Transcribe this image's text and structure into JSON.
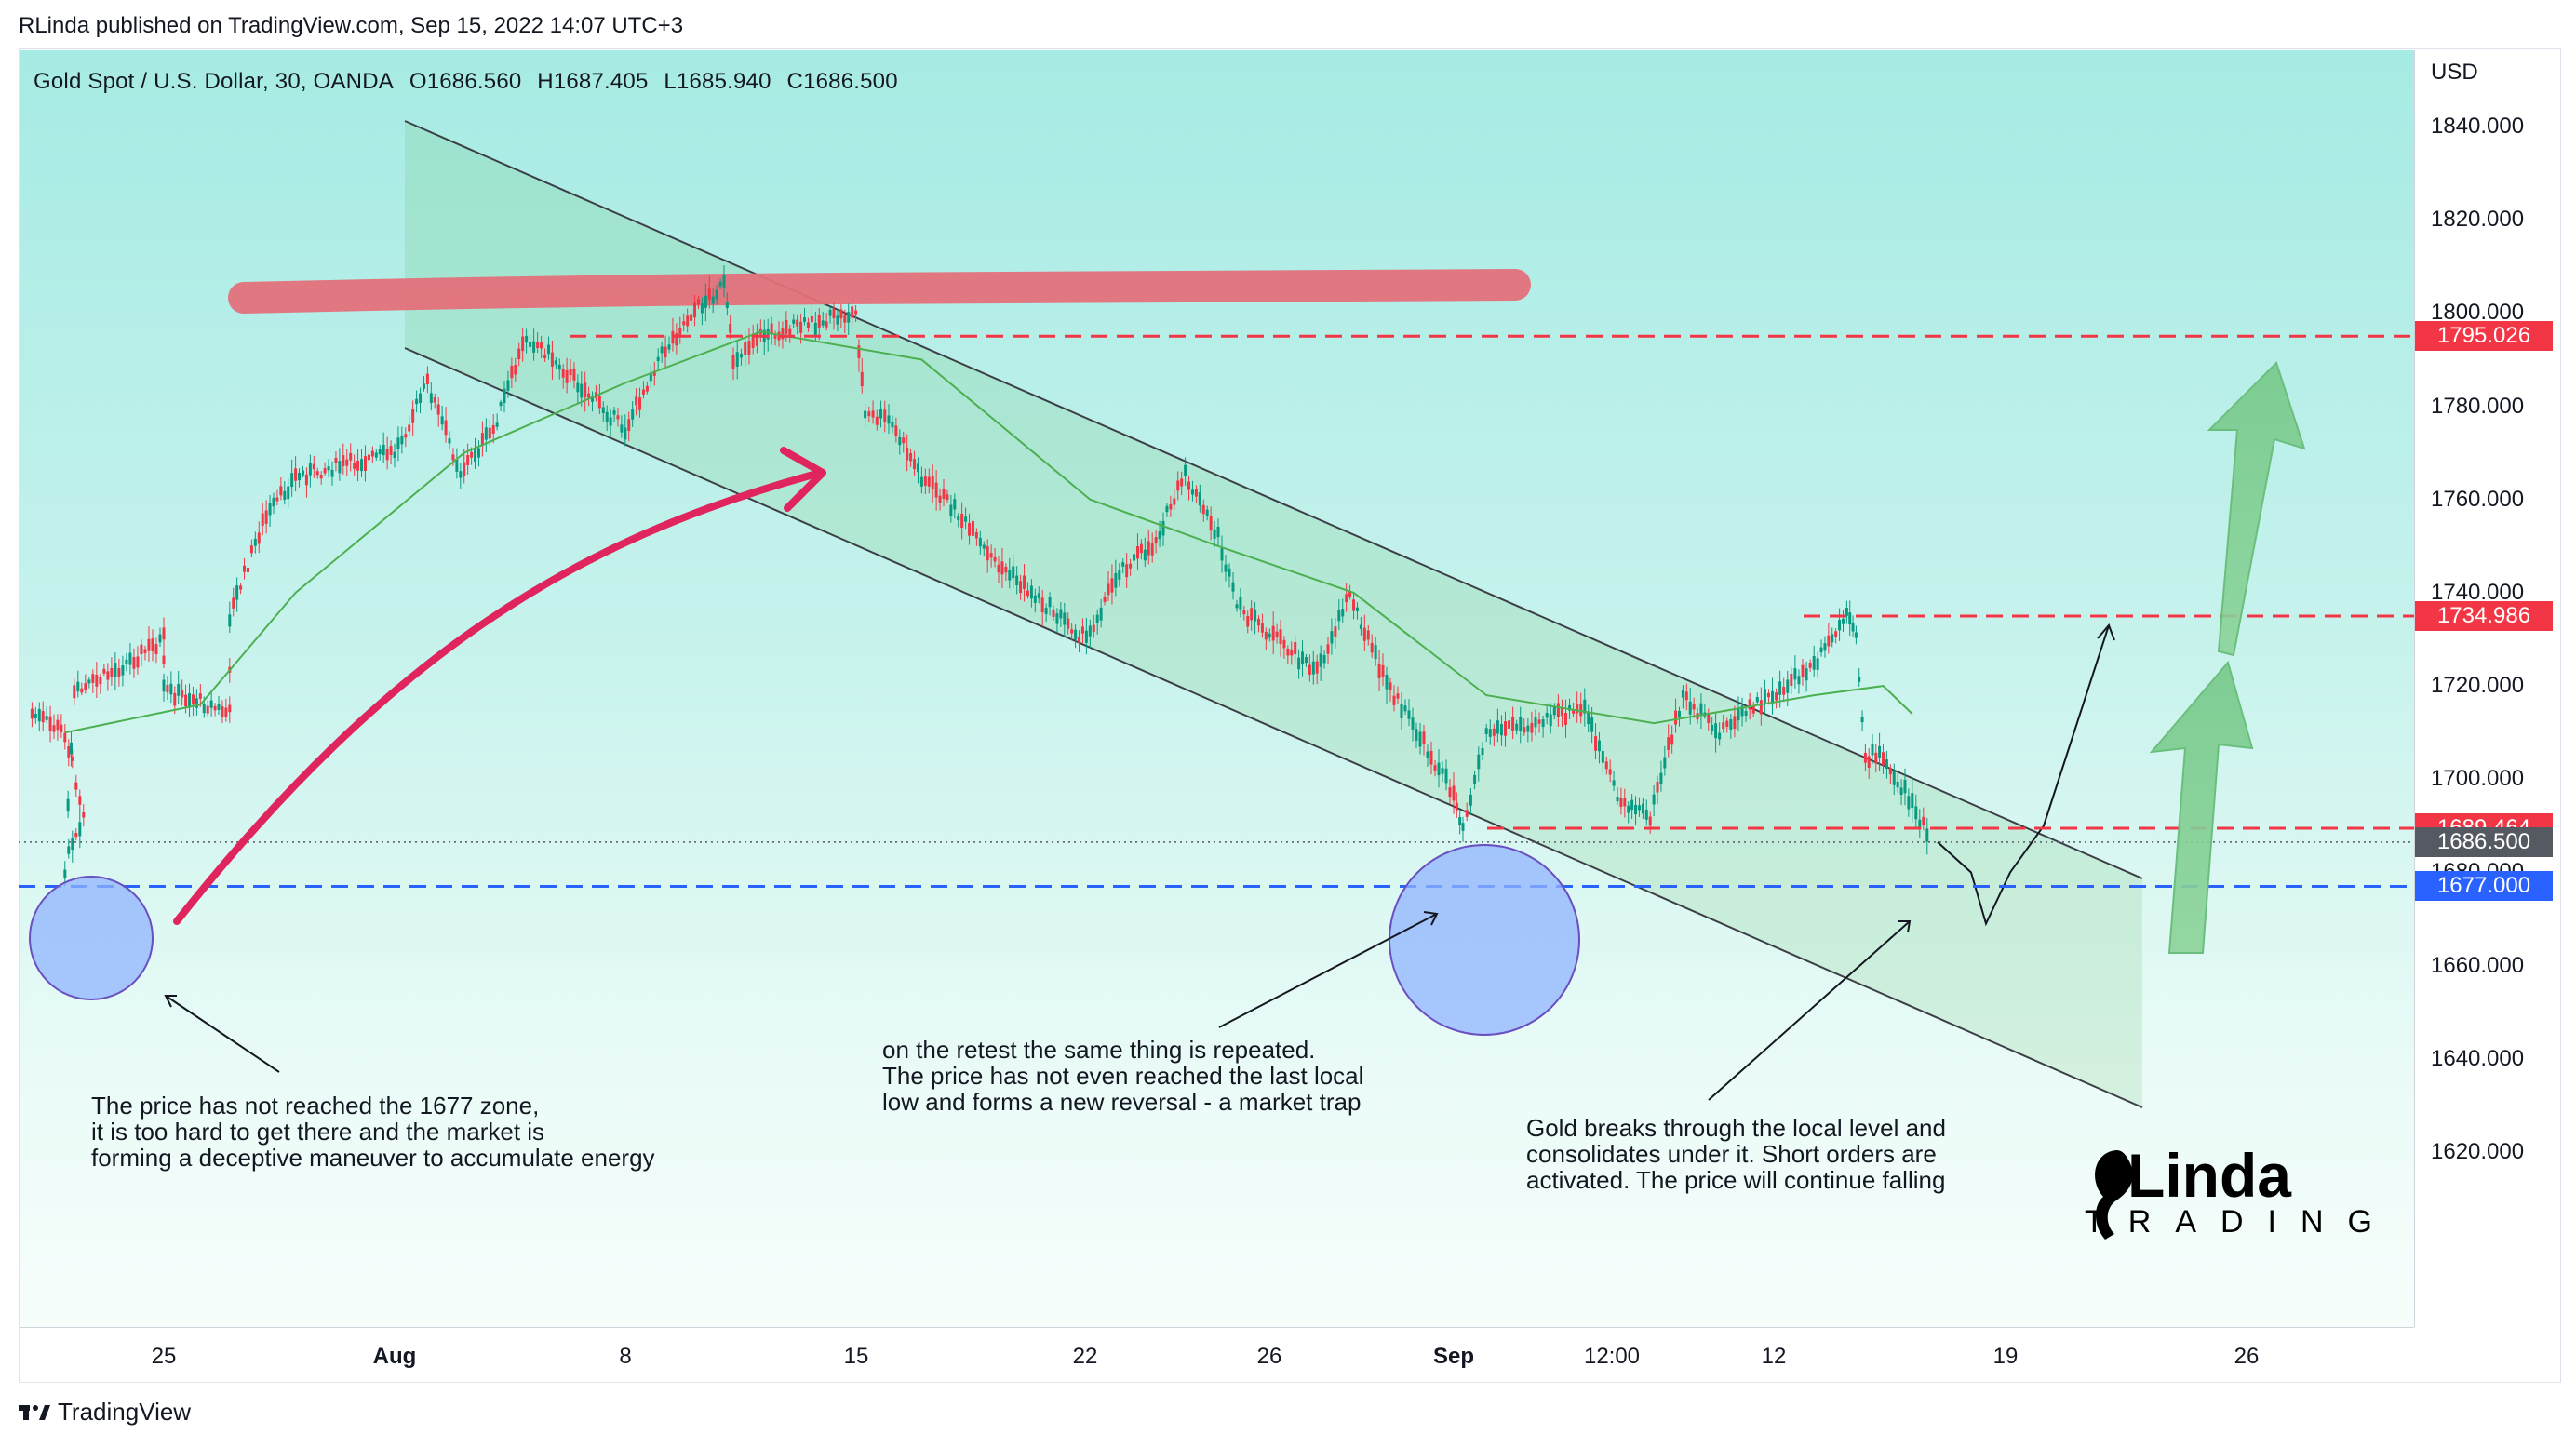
{
  "header": {
    "credit": "RLinda published on TradingView.com, Sep 15, 2022 14:07 UTC+3"
  },
  "legend": {
    "symbol": "Gold Spot / U.S. Dollar, 30, OANDA",
    "open": "O1686.560",
    "high": "H1687.405",
    "low": "L1685.940",
    "close": "C1686.500"
  },
  "price_axis": {
    "currency": "USD",
    "ticks": [
      "1840.000",
      "1820.000",
      "1800.000",
      "1780.000",
      "1760.000",
      "1740.000",
      "1720.000",
      "1700.000",
      "1680.000",
      "1660.000",
      "1640.000",
      "1620.000"
    ]
  },
  "time_axis": {
    "ticks": [
      {
        "label": "25",
        "bold": false
      },
      {
        "label": "Aug",
        "bold": true
      },
      {
        "label": "8",
        "bold": false
      },
      {
        "label": "15",
        "bold": false
      },
      {
        "label": "22",
        "bold": false
      },
      {
        "label": "26",
        "bold": false
      },
      {
        "label": "Sep",
        "bold": true
      },
      {
        "label": "12:00",
        "bold": false
      },
      {
        "label": "12",
        "bold": false
      },
      {
        "label": "19",
        "bold": false
      },
      {
        "label": "26",
        "bold": false
      }
    ]
  },
  "levels": [
    {
      "label": "1795.026",
      "color": "#f23645",
      "style": "dashed"
    },
    {
      "label": "1734.986",
      "color": "#f23645",
      "style": "dashed"
    },
    {
      "label": "1689.464",
      "color": "#f23645",
      "style": "dashed"
    },
    {
      "label": "1686.500",
      "color": "#555961",
      "style": "dotted"
    },
    {
      "label": "1677.000",
      "color": "#2962ff",
      "style": "dashed"
    }
  ],
  "annotations": [
    {
      "text": "The price has not reached the 1677 zone,\nit is too hard to get there and the market is\nforming a deceptive maneuver to accumulate energy"
    },
    {
      "text": "on the retest the same thing is repeated.\nThe price has not even reached the last local\nlow and forms a new reversal - a market trap"
    },
    {
      "text": "Gold breaks through the local level and\nconsolidates under it. Short orders are\nactivated. The price will continue falling"
    }
  ],
  "branding": {
    "footer": "TradingView",
    "logo_name": "RLinda",
    "logo_sub": "TRADING"
  },
  "colors": {
    "up": "#089981",
    "down": "#f23645",
    "channel": "#4caf50",
    "ma": "#4caf50"
  },
  "chart_data": {
    "type": "candlestick",
    "symbol": "XAUUSD",
    "timeframe": "30",
    "ylim": [
      1600,
      1850
    ],
    "close_price": 1686.5,
    "path": [
      {
        "x": "Jul 21",
        "y": 1714
      },
      {
        "x": "Jul 22",
        "y": 1710
      },
      {
        "x": "Jul 22",
        "y": 1693
      },
      {
        "x": "Jul 22",
        "y": 1681
      },
      {
        "x": "Jul 22",
        "y": 1718
      },
      {
        "x": "Jul 25",
        "y": 1730
      },
      {
        "x": "Jul 25",
        "y": 1719
      },
      {
        "x": "Jul 26",
        "y": 1717
      },
      {
        "x": "Jul 27",
        "y": 1714
      },
      {
        "x": "Jul 27",
        "y": 1735
      },
      {
        "x": "Jul 28",
        "y": 1755
      },
      {
        "x": "Jul 29",
        "y": 1765
      },
      {
        "x": "Aug 1",
        "y": 1770
      },
      {
        "x": "Aug 2",
        "y": 1785
      },
      {
        "x": "Aug 3",
        "y": 1766
      },
      {
        "x": "Aug 4",
        "y": 1775
      },
      {
        "x": "Aug 5",
        "y": 1795
      },
      {
        "x": "Aug 5",
        "y": 1792
      },
      {
        "x": "Aug 8",
        "y": 1775
      },
      {
        "x": "Aug 9",
        "y": 1790
      },
      {
        "x": "Aug 10",
        "y": 1800
      },
      {
        "x": "Aug 11",
        "y": 1806
      },
      {
        "x": "Aug 11",
        "y": 1790
      },
      {
        "x": "Aug 12",
        "y": 1795
      },
      {
        "x": "Aug 15",
        "y": 1800
      },
      {
        "x": "Aug 15",
        "y": 1778
      },
      {
        "x": "Aug 16",
        "y": 1777
      },
      {
        "x": "Aug 17",
        "y": 1765
      },
      {
        "x": "Aug 18",
        "y": 1758
      },
      {
        "x": "Aug 19",
        "y": 1748
      },
      {
        "x": "Aug 22",
        "y": 1730
      },
      {
        "x": "Aug 23",
        "y": 1745
      },
      {
        "x": "Aug 24",
        "y": 1750
      },
      {
        "x": "Aug 25",
        "y": 1765
      },
      {
        "x": "Aug 26",
        "y": 1752
      },
      {
        "x": "Aug 26",
        "y": 1737
      },
      {
        "x": "Aug 29",
        "y": 1723
      },
      {
        "x": "Aug 30",
        "y": 1740
      },
      {
        "x": "Aug 31",
        "y": 1722
      },
      {
        "x": "Sep 1",
        "y": 1697
      },
      {
        "x": "Sep 1",
        "y": 1690
      },
      {
        "x": "Sep 2",
        "y": 1710
      },
      {
        "x": "Sep 5",
        "y": 1715
      },
      {
        "x": "Sep 6",
        "y": 1696
      },
      {
        "x": "Sep 7",
        "y": 1692
      },
      {
        "x": "Sep 8",
        "y": 1718
      },
      {
        "x": "Sep 9",
        "y": 1710
      },
      {
        "x": "Sep 12",
        "y": 1724
      },
      {
        "x": "Sep 13",
        "y": 1735
      },
      {
        "x": "Sep 13",
        "y": 1730
      },
      {
        "x": "Sep 13",
        "y": 1705
      },
      {
        "x": "Sep 14",
        "y": 1705
      },
      {
        "x": "Sep 15",
        "y": 1695
      },
      {
        "x": "Sep 15",
        "y": 1686.5
      }
    ],
    "moving_average": [
      {
        "x": "Jul 22",
        "y": 1710
      },
      {
        "x": "Jul 26",
        "y": 1716
      },
      {
        "x": "Jul 29",
        "y": 1740
      },
      {
        "x": "Aug 3",
        "y": 1770
      },
      {
        "x": "Aug 8",
        "y": 1785
      },
      {
        "x": "Aug 12",
        "y": 1796
      },
      {
        "x": "Aug 17",
        "y": 1790
      },
      {
        "x": "Aug 22",
        "y": 1760
      },
      {
        "x": "Aug 26",
        "y": 1750
      },
      {
        "x": "Aug 30",
        "y": 1740
      },
      {
        "x": "Sep 2",
        "y": 1718
      },
      {
        "x": "Sep 7",
        "y": 1712
      },
      {
        "x": "Sep 12",
        "y": 1718
      },
      {
        "x": "Sep 14",
        "y": 1720
      },
      {
        "x": "Sep 15",
        "y": 1714
      }
    ],
    "forecast_path": [
      {
        "x": "Sep 15",
        "y": 1686.5
      },
      {
        "x": "Sep 16",
        "y": 1680
      },
      {
        "x": "Sep 16",
        "y": 1669
      },
      {
        "x": "Sep 19",
        "y": 1680
      },
      {
        "x": "Sep 19",
        "y": 1690
      },
      {
        "x": "Sep 20",
        "y": 1733
      }
    ],
    "levels": [
      1795.026,
      1734.986,
      1689.464,
      1686.5,
      1677.0
    ]
  }
}
